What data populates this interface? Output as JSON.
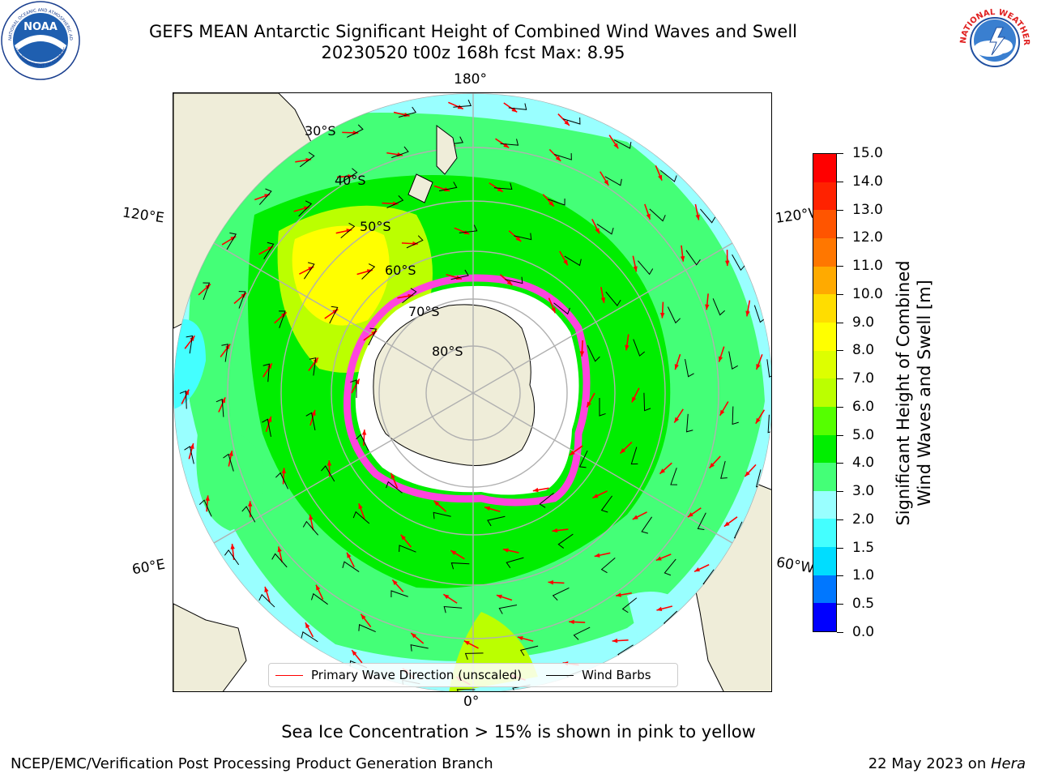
{
  "header": {
    "title_line1": "GEFS MEAN Antarctic Significant Height of Combined Wind Waves and Swell",
    "title_line2": "20230520 t00z 168h fcst   Max: 8.95"
  },
  "logos": {
    "left": "noaa-logo",
    "left_text": "NOAA",
    "left_ring_text": "NATIONAL OCEANIC AND ATMOSPHERIC ADMINISTRATION",
    "left_bottom_text": "U.S. DEPARTMENT OF COMMERCE",
    "right": "nws-logo",
    "right_ring_text": "NATIONAL WEATHER SERVICE"
  },
  "map": {
    "projection": "south-polar-stereographic",
    "longitude_labels": {
      "top": "180°",
      "bottom": "0°",
      "upper_left": "120°E",
      "lower_left": "60°E",
      "upper_right": "120°W",
      "lower_right": "60°W"
    },
    "latitude_labels": [
      "30°S",
      "40°S",
      "50°S",
      "60°S",
      "70°S",
      "80°S"
    ],
    "colors": {
      "ocean_low": "#99ffff",
      "land": "#efedd9",
      "ice_edge": "#ff44dd",
      "wave_arrow": "#ff0000",
      "wind_barb": "#000000"
    }
  },
  "legend": {
    "primary_wave_label": "Primary Wave Direction (unscaled)",
    "primary_wave_color": "#ff0000",
    "wind_barbs_label": "Wind Barbs",
    "wind_barbs_color": "#000000",
    "position": "bottom-center"
  },
  "colorbar": {
    "label_line1": "Significant Height of Combined",
    "label_line2": "Wind Waves and Swell [m]",
    "ticks": [
      "0.0",
      "0.5",
      "1.0",
      "1.5",
      "2.0",
      "3.0",
      "4.0",
      "5.0",
      "6.0",
      "7.0",
      "8.0",
      "9.0",
      "10.0",
      "11.0",
      "12.0",
      "13.0",
      "14.0",
      "15.0"
    ],
    "colors": [
      "#0000ff",
      "#0077ff",
      "#00ddff",
      "#44ffff",
      "#99ffff",
      "#44ff77",
      "#00ee00",
      "#55ff00",
      "#bbff00",
      "#ddff00",
      "#ffff00",
      "#ffdd00",
      "#ffaa00",
      "#ff7700",
      "#ff5500",
      "#ff2200",
      "#ff0000"
    ]
  },
  "note": "Sea Ice Concentration > 15% is shown in pink to yellow",
  "footer": {
    "left": "NCEP/EMC/Verification Post Processing Product Generation Branch",
    "right_prefix": "22 May 2023 on ",
    "right_machine": "Hera"
  }
}
